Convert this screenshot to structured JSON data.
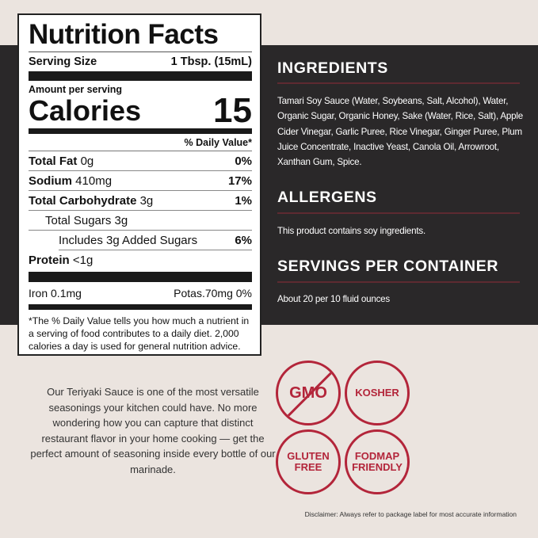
{
  "nutrition": {
    "title": "Nutrition Facts",
    "serving_size_label": "Serving Size",
    "serving_size_value": "1 Tbsp. (15mL)",
    "amount_per_serving": "Amount per serving",
    "calories_label": "Calories",
    "calories_value": "15",
    "daily_value_header": "% Daily Value*",
    "rows": [
      {
        "name": "Total Fat",
        "amount": "0g",
        "dv": "0%"
      },
      {
        "name": "Sodium",
        "amount": "410mg",
        "dv": "17%"
      },
      {
        "name": "Total Carbohydrate",
        "amount": "3g",
        "dv": "1%"
      },
      {
        "name": "Total Sugars 3g",
        "amount": "",
        "dv": ""
      },
      {
        "name": "Includes 3g Added Sugars",
        "amount": "",
        "dv": "6%"
      },
      {
        "name": "Protein",
        "amount": "<1g",
        "dv": ""
      }
    ],
    "iron": "Iron 0.1mg",
    "potassium": "Potas.70mg 0%",
    "footnote": "*The % Daily Value tells you how much a nutrient in a serving of food contributes to a daily diet. 2,000 calories a day is used for general nutrition advice."
  },
  "ingredients": {
    "heading": "INGREDIENTS",
    "text": "Tamari Soy Sauce (Water, Soybeans, Salt, Alcohol), Water, Organic Sugar, Organic Honey, Sake (Water, Rice, Salt), Apple Cider Vinegar, Garlic Puree, Rice Vinegar, Ginger Puree, Plum Juice Concentrate, Inactive Yeast, Canola Oil, Arrowroot, Xanthan Gum, Spice."
  },
  "allergens": {
    "heading": "ALLERGENS",
    "text": "This product contains soy ingredients."
  },
  "servings": {
    "heading": "SERVINGS PER CONTAINER",
    "text": "About 20 per 10 fluid ounces"
  },
  "description": "Our Teriyaki Sauce is one of the most versatile seasonings your kitchen could have. No more wondering how you can capture that distinct restaurant flavor in your home cooking — get the perfect amount of seasoning inside every bottle of our marinade.",
  "badges": {
    "gmo": "GMO",
    "kosher": "KOSHER",
    "gluten_free": "GLUTEN FREE",
    "fodmap": "FODMAP FRIENDLY"
  },
  "disclaimer": "Disclaimer: Always refer to package label for most accurate information",
  "colors": {
    "dark_panel": "#2a2829",
    "background": "#ebe4df",
    "badge_red": "#b3253a",
    "divider": "#5e2a31"
  }
}
